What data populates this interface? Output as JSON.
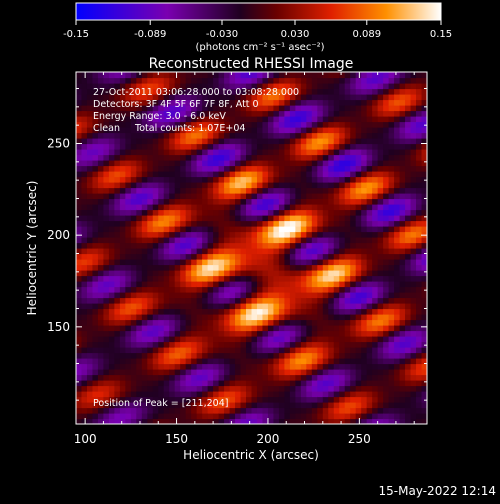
{
  "colorbar": {
    "tick_labels": [
      "-0.15",
      "-0.089",
      "-0.030",
      "0.030",
      "0.089",
      "0.15"
    ],
    "ticks": [
      -0.15,
      -0.089,
      -0.03,
      0.03,
      0.089,
      0.15
    ],
    "range": [
      -0.15,
      0.15
    ],
    "units_label": "(photons cm⁻² s⁻¹ asec⁻²)"
  },
  "chart_data": {
    "type": "heatmap",
    "title": "Reconstructed RHESSI Image",
    "xlabel": "Heliocentric X (arcsec)",
    "ylabel": "Heliocentric Y (arcsec)",
    "xlim": [
      95,
      287
    ],
    "ylim": [
      97,
      289
    ],
    "xticks": [
      100,
      150,
      200,
      250
    ],
    "yticks": [
      150,
      200,
      250
    ],
    "xtick_labels": [
      "100",
      "150",
      "200",
      "250"
    ],
    "ytick_labels": [
      "150",
      "200",
      "250"
    ],
    "colormap": "red-temperature (blue → purple → black → red → orange → yellow → white)",
    "peak": {
      "x": 211,
      "y": 204
    },
    "annotations": {
      "time_range": "27-Oct-2011 03:06:28.000 to 03:08:28.000",
      "detectors": "Detectors: 3F 4F 5F 6F 7F 8F, Att 0",
      "energy": "Energy Range: 3.0 - 6.0 keV",
      "clean": "Clean     Total counts: 1.07E+04",
      "peak_text": "Position of Peak = [211,204]"
    }
  },
  "footer": {
    "timestamp": "15-May-2022 12:14"
  }
}
